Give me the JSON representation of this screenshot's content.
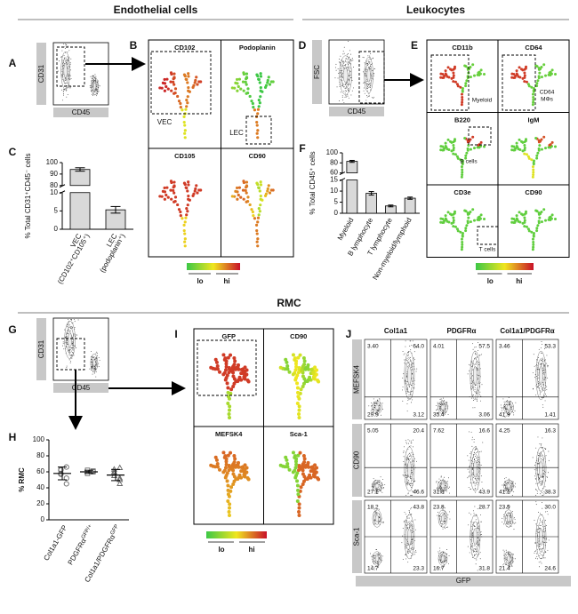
{
  "headers": [
    "Endothelial cells",
    "Leukocytes",
    "RMC"
  ],
  "panels": {
    "A": {
      "letter": "A",
      "ylabel": "CD31",
      "xlabel": "CD45"
    },
    "B": {
      "letter": "B",
      "tiles": [
        "CD102",
        "Podoplanin",
        "CD105",
        "CD90"
      ],
      "annotations": [
        "VEC",
        "LEC"
      ],
      "legend": [
        "lo",
        "hi"
      ]
    },
    "C": {
      "letter": "C"
    },
    "D": {
      "letter": "D",
      "ylabel": "FSC",
      "xlabel": "CD45"
    },
    "E": {
      "letter": "E",
      "tiles": [
        "CD11b",
        "CD64",
        "B220",
        "IgM",
        "CD3e",
        "CD90"
      ],
      "annotations": [
        "Myeloid",
        [
          "CD64",
          "MΦs"
        ],
        "B cells",
        "T cells"
      ],
      "legend": [
        "lo",
        "hi"
      ]
    },
    "F": {
      "letter": "F"
    },
    "G": {
      "letter": "G",
      "ylabel": "CD31",
      "xlabel": "CD45"
    },
    "H": {
      "letter": "H"
    },
    "I": {
      "letter": "I",
      "tiles": [
        "GFP",
        "CD90",
        "MEFSK4",
        "Sca-1"
      ],
      "legend": [
        "lo",
        "hi"
      ]
    },
    "J": {
      "letter": "J",
      "columns": [
        "Col1a1",
        "PDGFRα",
        "Col1a1/PDGFRα"
      ],
      "rows": [
        "MEFSK4",
        "CD90",
        "Sca-1"
      ],
      "xlabel": "GFP",
      "quadrants": [
        [
          [
            "3.40",
            "64.0",
            "29.9",
            "3.12"
          ],
          [
            "4.01",
            "57.5",
            "35.4",
            "3.06"
          ],
          [
            "3.46",
            "53.3",
            "41.9",
            "1.41"
          ]
        ],
        [
          [
            "5.05",
            "20.4",
            "27.1",
            "46.6"
          ],
          [
            "7.62",
            "16.6",
            "31.8",
            "43.9"
          ],
          [
            "4.25",
            "16.3",
            "41.1",
            "38.3"
          ]
        ],
        [
          [
            "18.2",
            "43.8",
            "14.7",
            "23.3"
          ],
          [
            "23.8",
            "28.7",
            "16.7",
            "31.8"
          ],
          [
            "23.9",
            "30.0",
            "21.4",
            "24.6"
          ]
        ]
      ]
    }
  },
  "chart_data": [
    {
      "type": "bar",
      "ylabel": "% Total CD31⁺CD45⁻ cells",
      "categories": [
        [
          "VEC",
          "(CD102⁺CD105⁺)"
        ],
        [
          "LEC",
          "(podoplanin⁺)"
        ]
      ],
      "values": [
        94,
        5.3
      ],
      "errors": [
        1.5,
        0.9
      ],
      "ylim": [
        0,
        100
      ],
      "ybreak": [
        10,
        80
      ],
      "yticks": [
        0,
        5,
        10,
        80,
        90,
        100
      ],
      "color": "#d9d9d9"
    },
    {
      "type": "bar",
      "ylabel": "% Total CD45⁺ cells",
      "categories": [
        [
          "Myeloid"
        ],
        [
          "B lymphocyte"
        ],
        [
          "T lymphocyte"
        ],
        [
          "Non-myeloid/lymphoid"
        ]
      ],
      "values": [
        83,
        9,
        3.3,
        6.8
      ],
      "errors": [
        2,
        0.8,
        0.4,
        0.5
      ],
      "ylim": [
        0,
        100
      ],
      "ybreak": [
        15,
        60
      ],
      "yticks": [
        0,
        5,
        10,
        15,
        60,
        80,
        100
      ],
      "color": "#d9d9d9"
    },
    {
      "type": "strip",
      "ylabel": "% RMC",
      "categories": [
        [
          "Col1a1-GFP"
        ],
        [
          "PDGFRα",
          "GFP/+"
        ],
        [
          "Col1a1/PDGFRα",
          "GFP"
        ]
      ],
      "points": [
        [
          66,
          62,
          58,
          52,
          45,
          57,
          63
        ],
        [
          60,
          62,
          58,
          61
        ],
        [
          65,
          60,
          55,
          52,
          45,
          58,
          63,
          50
        ]
      ],
      "means": [
        58,
        60,
        56
      ],
      "sd": [
        8,
        2,
        7
      ],
      "ylim": [
        0,
        100
      ],
      "yticks": [
        0,
        20,
        40,
        60,
        80,
        100
      ],
      "markers": [
        "circle",
        "square",
        "triangle"
      ]
    }
  ]
}
